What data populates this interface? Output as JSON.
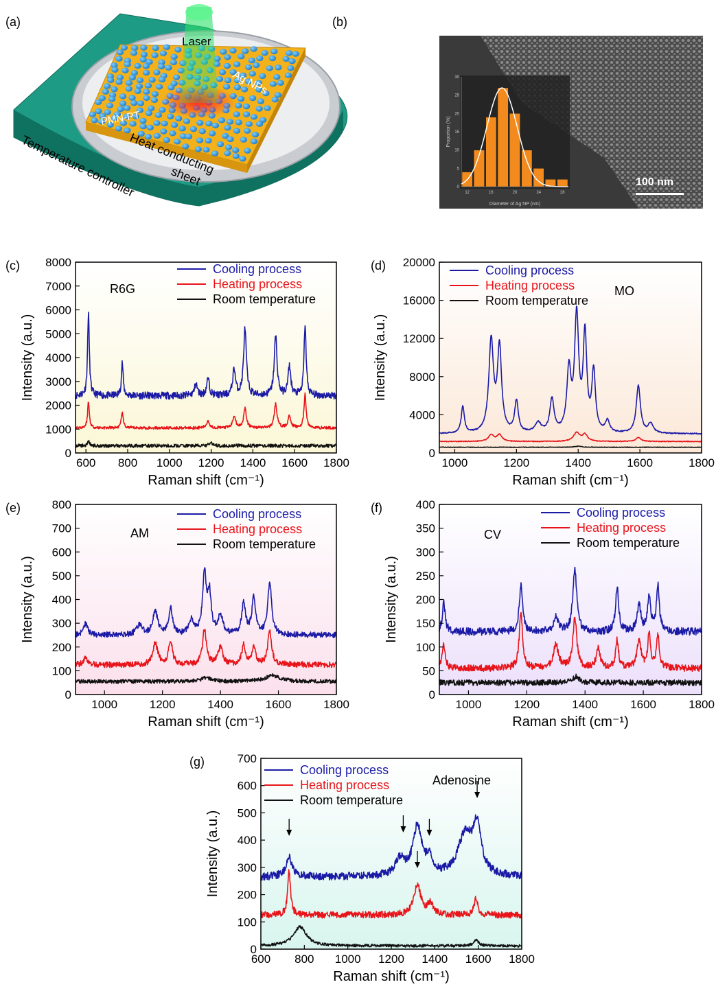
{
  "panels": {
    "a": {
      "label": "(a)",
      "texts": [
        "Laser",
        "Ag NPs",
        "PMN-PT",
        "Heat conducting",
        "sheet",
        "Temperature controller"
      ]
    },
    "b": {
      "label": "(b)",
      "scale_bar": "100 nm",
      "inset": {
        "xlabel": "Diameter of Ag NP (nm)",
        "ylabel": "Proportion (%)",
        "xticks": [
          "12",
          "16",
          "20",
          "24",
          "28"
        ],
        "yticks": [
          "0",
          "5",
          "10",
          "15",
          "20",
          "25",
          "30"
        ]
      }
    }
  },
  "legend_labels": [
    "Cooling process",
    "Heating process",
    "Room temperature"
  ],
  "colors": {
    "cooling": "#1a1aa6",
    "heating": "#e8141a",
    "room": "#111111"
  },
  "xlabel": "Raman shift (cm⁻¹)",
  "ylabel": "Intensity (a.u.)",
  "chart_data": [
    {
      "type": "bar",
      "panel": "b-inset",
      "categories": [
        "12",
        "14",
        "16",
        "18",
        "20",
        "22",
        "24",
        "26",
        "28"
      ],
      "values": [
        4,
        10,
        19,
        27,
        20,
        10,
        5,
        2,
        2
      ],
      "xlabel": "Diameter of Ag NP (nm)",
      "ylabel": "Proportion (%)",
      "ylim": [
        0,
        30
      ]
    },
    {
      "type": "line",
      "panel": "(c)",
      "annotation": "R6G",
      "xlim": [
        550,
        1800
      ],
      "ylim": [
        0,
        8000
      ],
      "xticks": [
        600,
        800,
        1000,
        1200,
        1400,
        1600,
        1800
      ],
      "yticks": [
        0,
        1000,
        2000,
        3000,
        4000,
        5000,
        6000,
        7000,
        8000
      ],
      "background": "#fbf7d6",
      "series": [
        {
          "name": "Cooling process",
          "baseline": 2400,
          "noise": 150,
          "peaks": [
            [
              612,
              3500,
              5
            ],
            [
              774,
              1400,
              5
            ],
            [
              1127,
              500,
              8
            ],
            [
              1185,
              700,
              8
            ],
            [
              1310,
              1100,
              8
            ],
            [
              1362,
              2800,
              8
            ],
            [
              1509,
              2500,
              8
            ],
            [
              1575,
              1200,
              8
            ],
            [
              1650,
              3000,
              6
            ]
          ]
        },
        {
          "name": "Heating process",
          "baseline": 1050,
          "noise": 60,
          "peaks": [
            [
              612,
              1100,
              5
            ],
            [
              774,
              700,
              5
            ],
            [
              1185,
              300,
              8
            ],
            [
              1310,
              500,
              8
            ],
            [
              1362,
              800,
              8
            ],
            [
              1509,
              1000,
              8
            ],
            [
              1575,
              500,
              8
            ],
            [
              1650,
              1400,
              6
            ]
          ]
        },
        {
          "name": "Room temperature",
          "baseline": 300,
          "noise": 70,
          "peaks": [
            [
              612,
              200,
              6
            ],
            [
              1200,
              120,
              10
            ]
          ]
        }
      ]
    },
    {
      "type": "line",
      "panel": "(d)",
      "annotation": "MO",
      "xlim": [
        950,
        1800
      ],
      "ylim": [
        0,
        20000
      ],
      "xticks": [
        1000,
        1200,
        1400,
        1600,
        1800
      ],
      "yticks": [
        0,
        4000,
        8000,
        12000,
        16000,
        20000
      ],
      "background": "#fbe8d8",
      "series": [
        {
          "name": "Cooling process",
          "baseline": 2000,
          "noise": 60,
          "peaks": [
            [
              1026,
              2800,
              6
            ],
            [
              1118,
              9600,
              9
            ],
            [
              1145,
              8800,
              8
            ],
            [
              1200,
              3300,
              7
            ],
            [
              1270,
              1000,
              12
            ],
            [
              1315,
              3500,
              8
            ],
            [
              1370,
              6300,
              8
            ],
            [
              1395,
              12000,
              8
            ],
            [
              1422,
              10000,
              7
            ],
            [
              1450,
              6300,
              7
            ],
            [
              1495,
              1200,
              8
            ],
            [
              1595,
              5000,
              8
            ],
            [
              1635,
              1000,
              10
            ]
          ]
        },
        {
          "name": "Heating process",
          "baseline": 1200,
          "noise": 40,
          "peaks": [
            [
              1118,
              700,
              10
            ],
            [
              1145,
              700,
              10
            ],
            [
              1395,
              900,
              12
            ],
            [
              1422,
              700,
              10
            ],
            [
              1595,
              400,
              10
            ]
          ]
        },
        {
          "name": "Room temperature",
          "baseline": 600,
          "noise": 30,
          "peaks": [
            [
              1400,
              100,
              15
            ]
          ]
        }
      ]
    },
    {
      "type": "line",
      "panel": "(e)",
      "annotation": "AM",
      "xlim": [
        900,
        1800
      ],
      "ylim": [
        0,
        800
      ],
      "xticks": [
        1000,
        1200,
        1400,
        1600,
        1800
      ],
      "yticks": [
        0,
        100,
        200,
        300,
        400,
        500,
        600,
        700,
        800
      ],
      "background": "#fbe0ec",
      "series": [
        {
          "name": "Cooling process",
          "baseline": 250,
          "noise": 12,
          "peaks": [
            [
              935,
              50,
              8
            ],
            [
              1120,
              40,
              12
            ],
            [
              1175,
              100,
              10
            ],
            [
              1228,
              110,
              8
            ],
            [
              1300,
              60,
              10
            ],
            [
              1345,
              250,
              8
            ],
            [
              1362,
              160,
              7
            ],
            [
              1400,
              80,
              10
            ],
            [
              1480,
              130,
              8
            ],
            [
              1515,
              150,
              8
            ],
            [
              1570,
              220,
              8
            ]
          ]
        },
        {
          "name": "Heating process",
          "baseline": 125,
          "noise": 12,
          "peaks": [
            [
              935,
              30,
              8
            ],
            [
              1175,
              90,
              10
            ],
            [
              1228,
              100,
              8
            ],
            [
              1345,
              150,
              8
            ],
            [
              1400,
              70,
              10
            ],
            [
              1480,
              80,
              8
            ],
            [
              1515,
              70,
              8
            ],
            [
              1570,
              140,
              8
            ]
          ]
        },
        {
          "name": "Room temperature",
          "baseline": 55,
          "noise": 8,
          "peaks": [
            [
              1350,
              15,
              20
            ],
            [
              1580,
              25,
              30
            ]
          ]
        }
      ]
    },
    {
      "type": "line",
      "panel": "(f)",
      "annotation": "CV",
      "xlim": [
        900,
        1800
      ],
      "ylim": [
        0,
        400
      ],
      "xticks": [
        1000,
        1200,
        1400,
        1600,
        1800
      ],
      "yticks": [
        0,
        50,
        100,
        150,
        200,
        250,
        300,
        350,
        400
      ],
      "background": "#ece0fb",
      "series": [
        {
          "name": "Cooling process",
          "baseline": 132,
          "noise": 8,
          "peaks": [
            [
              915,
              60,
              6
            ],
            [
              1180,
              95,
              7
            ],
            [
              1300,
              30,
              10
            ],
            [
              1365,
              130,
              8
            ],
            [
              1510,
              95,
              6
            ],
            [
              1585,
              55,
              8
            ],
            [
              1620,
              75,
              6
            ],
            [
              1650,
              95,
              6
            ]
          ]
        },
        {
          "name": "Heating process",
          "baseline": 55,
          "noise": 7,
          "peaks": [
            [
              915,
              50,
              6
            ],
            [
              1180,
              115,
              7
            ],
            [
              1300,
              50,
              10
            ],
            [
              1365,
              105,
              8
            ],
            [
              1445,
              40,
              8
            ],
            [
              1510,
              60,
              6
            ],
            [
              1585,
              60,
              8
            ],
            [
              1620,
              70,
              6
            ],
            [
              1650,
              70,
              6
            ]
          ]
        },
        {
          "name": "Room temperature",
          "baseline": 25,
          "noise": 6,
          "peaks": [
            [
              1370,
              12,
              15
            ]
          ]
        }
      ]
    },
    {
      "type": "line",
      "panel": "(g)",
      "annotation": "Adenosine",
      "xlim": [
        600,
        1800
      ],
      "ylim": [
        0,
        700
      ],
      "xticks": [
        600,
        800,
        1000,
        1200,
        1400,
        1600,
        1800
      ],
      "yticks": [
        0,
        100,
        200,
        300,
        400,
        500,
        600,
        700
      ],
      "background": "#d8f5ee",
      "arrows": [
        730,
        1255,
        1320,
        1375,
        1595
      ],
      "series": [
        {
          "name": "Cooling process",
          "baseline": 265,
          "noise": 14,
          "peaks": [
            [
              730,
              70,
              18
            ],
            [
              1240,
              60,
              25
            ],
            [
              1320,
              180,
              25
            ],
            [
              1375,
              60,
              15
            ],
            [
              1540,
              150,
              40
            ],
            [
              1595,
              170,
              22
            ]
          ]
        },
        {
          "name": "Heating process",
          "baseline": 125,
          "noise": 12,
          "peaks": [
            [
              730,
              160,
              8
            ],
            [
              1320,
              110,
              20
            ],
            [
              1380,
              40,
              15
            ],
            [
              1590,
              60,
              10
            ]
          ]
        },
        {
          "name": "Room temperature",
          "baseline": 12,
          "noise": 5,
          "peaks": [
            [
              780,
              70,
              35
            ],
            [
              1590,
              20,
              15
            ]
          ]
        }
      ]
    }
  ]
}
